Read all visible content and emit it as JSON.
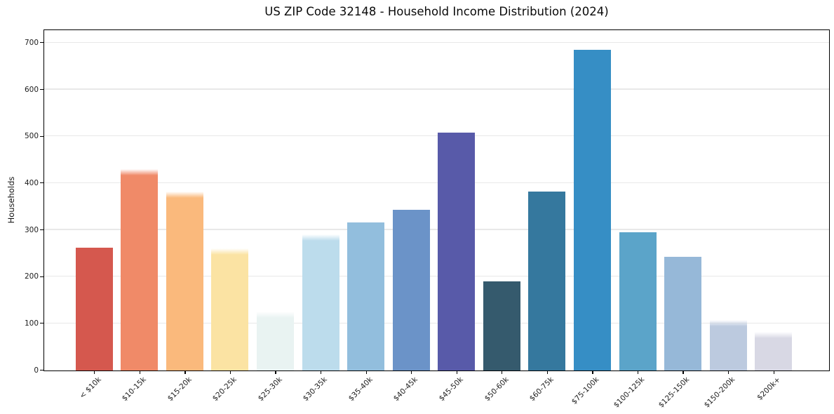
{
  "page": {
    "background": "#ffffff"
  },
  "chart_data": {
    "type": "bar",
    "title": "US ZIP Code 32148 - Household Income Distribution (2024)",
    "xlabel": "",
    "ylabel": "Households",
    "categories": [
      "< $10k",
      "$10-15k",
      "$15-20k",
      "$20-25k",
      "$25-30k",
      "$30-35k",
      "$35-40k",
      "$40-45k",
      "$45-50k",
      "$50-60k",
      "$60-75k",
      "$75-100k",
      "$100-125k",
      "$125-150k",
      "$150-200k",
      "$200k+"
    ],
    "values": [
      263,
      430,
      383,
      261,
      126,
      291,
      316,
      344,
      508,
      190,
      382,
      686,
      296,
      243,
      108,
      83
    ],
    "bar_colors": [
      "#d5584e",
      "#f08a68",
      "#fab97c",
      "#fbe3a3",
      "#e9f3f2",
      "#bcdcec",
      "#92bedd",
      "#6b93c8",
      "#585aa9",
      "#355a6d",
      "#35789e",
      "#368ec5",
      "#5ba4c9",
      "#96b8d8",
      "#bccadf",
      "#d8d8e4"
    ],
    "soft_top_bars": [
      false,
      true,
      true,
      true,
      true,
      true,
      false,
      false,
      false,
      false,
      false,
      false,
      false,
      false,
      true,
      true
    ],
    "yticks": [
      0,
      100,
      200,
      300,
      400,
      500,
      600,
      700
    ],
    "ylim": [
      0,
      726
    ],
    "grid": "horizontal",
    "legend": "none",
    "grid_color": "#e8e8e8",
    "axis_color": "#000000",
    "tick_text_color": "#1c1c1c",
    "title_color": "#0a0a0a"
  }
}
